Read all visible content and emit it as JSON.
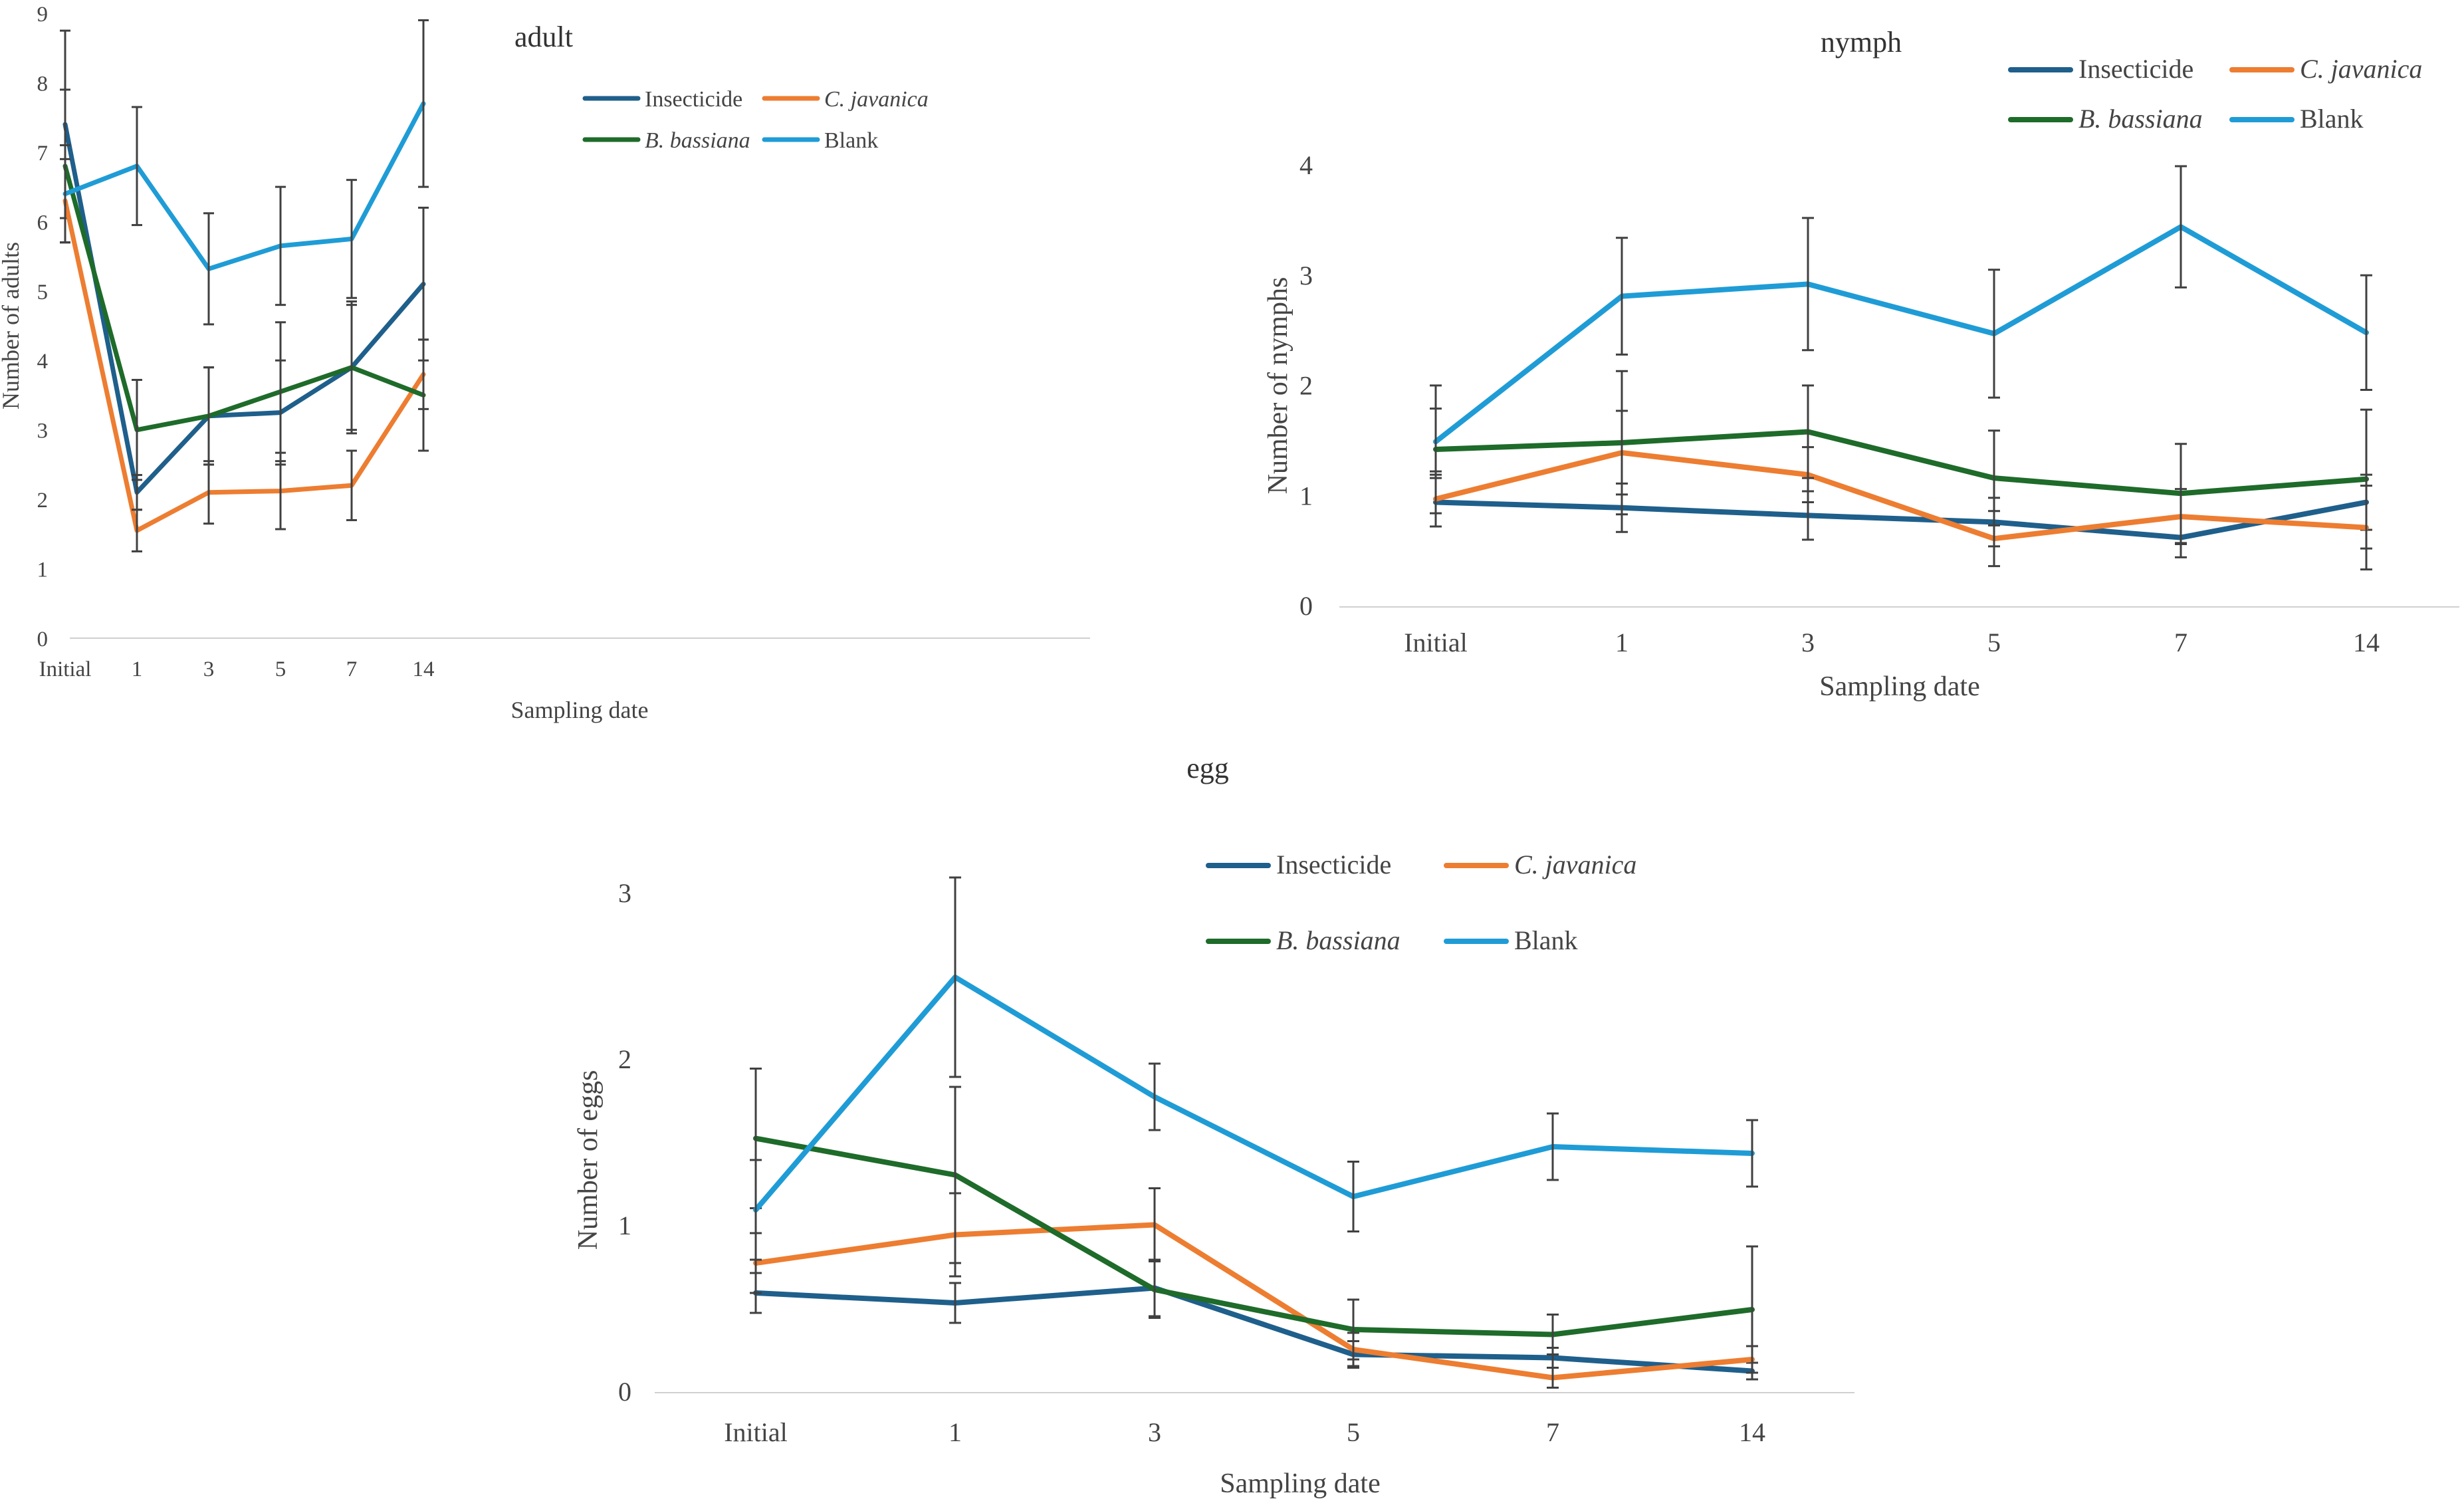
{
  "chart_data": [
    {
      "id": "adult",
      "type": "line",
      "title": "adult",
      "xlabel": "Sampling date",
      "ylabel": "Number of adults",
      "categories": [
        "Initial",
        "1",
        "3",
        "5",
        "7",
        "14"
      ],
      "ylim": [
        0,
        9
      ],
      "yticks": [
        "0",
        "1",
        "2",
        "3",
        "4",
        "5",
        "6",
        "7",
        "8",
        "9"
      ],
      "grid": false,
      "legend_position": "top-center",
      "series": [
        {
          "name": "Insecticide",
          "italic": false,
          "color": "#1f5f8b",
          "values": [
            7.4,
            2.1,
            3.2,
            3.25,
            3.9,
            5.1
          ],
          "errors": [
            1.35,
            0.25,
            0.7,
            0.75,
            0.9,
            1.1
          ]
        },
        {
          "name": "C. javanica",
          "italic": true,
          "color": "#ed7d31",
          "values": [
            6.3,
            1.55,
            2.1,
            2.12,
            2.2,
            3.8
          ],
          "errors": [
            0.6,
            0.3,
            0.45,
            0.55,
            0.5,
            0.5
          ]
        },
        {
          "name": "B. bassiana",
          "italic": true,
          "color": "#1e6b2a",
          "values": [
            6.8,
            3.0,
            3.2,
            3.55,
            3.9,
            3.5
          ],
          "errors": [
            1.1,
            0.72,
            0.7,
            1.0,
            0.95,
            0.8
          ]
        },
        {
          "name": "Blank",
          "italic": false,
          "color": "#1f9cd6",
          "values": [
            6.4,
            6.8,
            5.32,
            5.65,
            5.75,
            7.7
          ],
          "errors": [
            0.7,
            0.85,
            0.8,
            0.85,
            0.85,
            1.2
          ]
        }
      ]
    },
    {
      "id": "nymph",
      "type": "line",
      "title": "nymph",
      "xlabel": "Sampling date",
      "ylabel": "Number of nymphs",
      "categories": [
        "Initial",
        "1",
        "3",
        "5",
        "7",
        "14"
      ],
      "ylim": [
        0,
        4
      ],
      "yticks": [
        "0",
        "1",
        "2",
        "3",
        "4"
      ],
      "grid": false,
      "legend_position": "top-right",
      "series": [
        {
          "name": "Insecticide",
          "italic": false,
          "color": "#1f5f8b",
          "values": [
            0.95,
            0.9,
            0.83,
            0.77,
            0.63,
            0.95
          ],
          "errors": [
            0.22,
            0.22,
            0.22,
            0.22,
            0.18,
            0.25
          ]
        },
        {
          "name": "C. javanica",
          "italic": true,
          "color": "#ed7d31",
          "values": [
            0.98,
            1.4,
            1.2,
            0.62,
            0.82,
            0.72
          ],
          "errors": [
            0.25,
            0.38,
            0.25,
            0.25,
            0.25,
            0.38
          ]
        },
        {
          "name": "B. bassiana",
          "italic": true,
          "color": "#1e6b2a",
          "values": [
            1.43,
            1.49,
            1.59,
            1.17,
            1.03,
            1.16
          ],
          "errors": [
            0.58,
            0.65,
            0.42,
            0.43,
            0.45,
            0.63
          ]
        },
        {
          "name": "Blank",
          "italic": false,
          "color": "#1f9cd6",
          "values": [
            1.5,
            2.82,
            2.93,
            2.48,
            3.45,
            2.49
          ],
          "errors": [
            0.3,
            0.53,
            0.6,
            0.58,
            0.55,
            0.52
          ]
        }
      ]
    },
    {
      "id": "egg",
      "type": "line",
      "title": "egg",
      "xlabel": "Sampling date",
      "ylabel": "Number of eggs",
      "categories": [
        "Initial",
        "1",
        "3",
        "5",
        "7",
        "14"
      ],
      "ylim": [
        0,
        3
      ],
      "yticks": [
        "0",
        "1",
        "2",
        "3"
      ],
      "grid": false,
      "legend_position": "top-center",
      "series": [
        {
          "name": "Insecticide",
          "italic": false,
          "color": "#1f5f8b",
          "values": [
            0.6,
            0.54,
            0.63,
            0.23,
            0.21,
            0.13
          ],
          "errors": [
            0.12,
            0.12,
            0.17,
            0.08,
            0.06,
            0.05
          ]
        },
        {
          "name": "C. javanica",
          "italic": true,
          "color": "#ed7d31",
          "values": [
            0.78,
            0.95,
            1.01,
            0.26,
            0.09,
            0.2
          ],
          "errors": [
            0.18,
            0.25,
            0.22,
            0.1,
            0.06,
            0.08
          ]
        },
        {
          "name": "B. bassiana",
          "italic": true,
          "color": "#1e6b2a",
          "values": [
            1.53,
            1.31,
            0.62,
            0.38,
            0.35,
            0.5
          ],
          "errors": [
            0.42,
            0.53,
            0.17,
            0.18,
            0.12,
            0.38
          ]
        },
        {
          "name": "Blank",
          "italic": false,
          "color": "#1f9cd6",
          "values": [
            1.1,
            2.5,
            1.78,
            1.18,
            1.48,
            1.44
          ],
          "errors": [
            0.3,
            0.6,
            0.2,
            0.21,
            0.2,
            0.2
          ]
        }
      ]
    }
  ]
}
